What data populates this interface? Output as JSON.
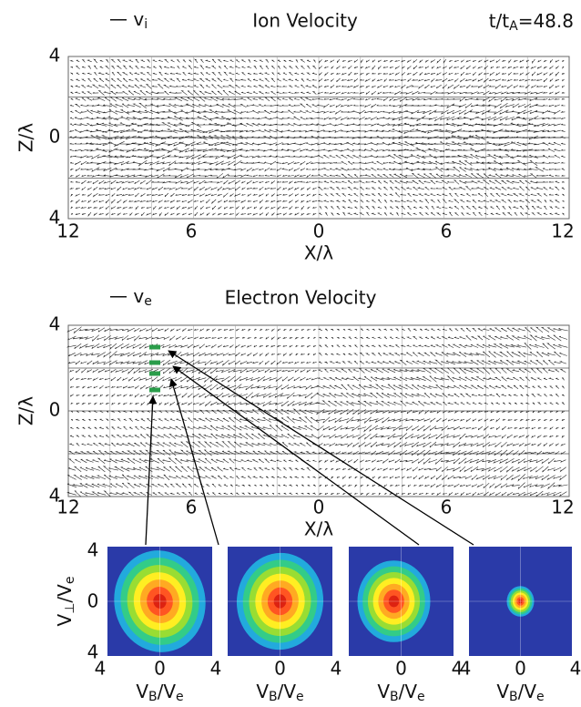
{
  "panels": [
    {
      "legend": {
        "main": "v",
        "sub": "i"
      },
      "title": "Ion Velocity",
      "time": {
        "main": "t/t",
        "sub": "A",
        "rest": "=48.8"
      },
      "y_label": "Z/λ",
      "x_label": "X/λ",
      "yticks": [
        "4",
        "0",
        "4"
      ],
      "xticks": [
        "12",
        "6",
        "0",
        "6",
        "12"
      ]
    },
    {
      "legend": {
        "main": "v",
        "sub": "e"
      },
      "title": "Electron Velocity",
      "y_label": "Z/λ",
      "x_label": "X/λ",
      "yticks": [
        "4",
        "0",
        "4"
      ],
      "xticks": [
        "12",
        "6",
        "0",
        "6",
        "12"
      ]
    }
  ],
  "distributions": {
    "y_label": {
      "main": "V",
      "sub": "⊥",
      "rest": "/V",
      "sub2": "e"
    },
    "x_label": {
      "main": "V",
      "sub": "B",
      "rest": "/V",
      "sub2": "e"
    },
    "yticks": [
      "4",
      "0",
      "4"
    ],
    "xticks": [
      "4",
      "0",
      "4"
    ]
  }
}
